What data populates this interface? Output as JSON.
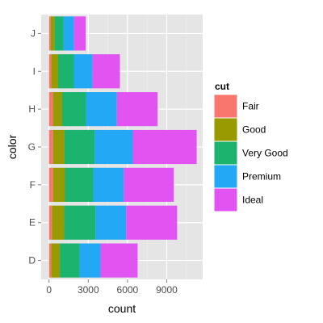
{
  "chart_data": {
    "type": "bar",
    "orientation": "horizontal",
    "stacked": true,
    "xlabel": "count",
    "ylabel": "color",
    "xlim": [
      -600,
      11750
    ],
    "x_ticks": [
      0,
      3000,
      6000,
      9000
    ],
    "x_tick_labels": [
      "0",
      "3000",
      "6000",
      "9000"
    ],
    "categories": [
      "D",
      "E",
      "F",
      "G",
      "H",
      "I",
      "J"
    ],
    "series": [
      {
        "name": "Fair",
        "color": "#F8766D",
        "values": [
          163,
          224,
          312,
          314,
          303,
          175,
          119
        ]
      },
      {
        "name": "Good",
        "color": "#999900",
        "values": [
          662,
          933,
          909,
          871,
          702,
          522,
          307
        ]
      },
      {
        "name": "Very Good",
        "color": "#1BB36E",
        "values": [
          1513,
          2400,
          2164,
          2299,
          1824,
          1204,
          678
        ]
      },
      {
        "name": "Premium",
        "color": "#22A8F5",
        "values": [
          1603,
          2337,
          2331,
          2924,
          2360,
          1428,
          808
        ]
      },
      {
        "name": "Ideal",
        "color": "#E154F2",
        "values": [
          2834,
          3903,
          3826,
          4884,
          3115,
          2093,
          896
        ]
      }
    ],
    "legend": {
      "title": "cut",
      "position": "right"
    },
    "grid": true
  }
}
